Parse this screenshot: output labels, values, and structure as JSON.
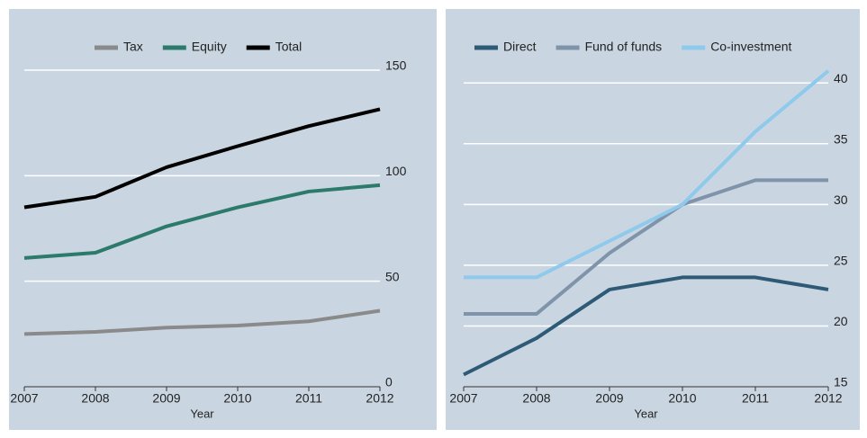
{
  "chart_data": [
    {
      "type": "line",
      "x_label": "Year",
      "x": [
        2007,
        2008,
        2009,
        2010,
        2011,
        2012
      ],
      "xlim": [
        2007,
        2012
      ],
      "xticks": [
        2007,
        2008,
        2009,
        2010,
        2011,
        2012
      ],
      "ylim": [
        0,
        150
      ],
      "yticks": [
        0,
        50,
        100,
        150
      ],
      "grid": true,
      "legend": "top",
      "series": [
        {
          "name": "Tax",
          "color": "#8a8a8a",
          "values": [
            25,
            26,
            28,
            29,
            31,
            36
          ]
        },
        {
          "name": "Equity",
          "color": "#2c7a69",
          "values": [
            61,
            63.5,
            76,
            85,
            92.5,
            95.5
          ]
        },
        {
          "name": "Total",
          "color": "#000000",
          "values": [
            85,
            90,
            104,
            114,
            123.5,
            131.5
          ]
        }
      ]
    },
    {
      "type": "line",
      "x_label": "Year",
      "x": [
        2007,
        2008,
        2009,
        2010,
        2011,
        2012
      ],
      "xlim": [
        2007,
        2012
      ],
      "xticks": [
        2007,
        2008,
        2009,
        2010,
        2011,
        2012
      ],
      "ylim": [
        15,
        41.5
      ],
      "yticks": [
        15,
        20,
        25,
        30,
        35,
        40
      ],
      "grid": true,
      "legend": "top",
      "series": [
        {
          "name": "Direct",
          "color": "#2e5a76",
          "values": [
            16,
            19,
            23,
            24,
            24,
            23
          ]
        },
        {
          "name": "Fund of funds",
          "color": "#7f94aa",
          "values": [
            21,
            21,
            26,
            30,
            32,
            32
          ]
        },
        {
          "name": "Co-investment",
          "color": "#8fc9ec",
          "values": [
            24,
            24,
            27,
            30,
            36,
            41
          ]
        }
      ]
    }
  ]
}
